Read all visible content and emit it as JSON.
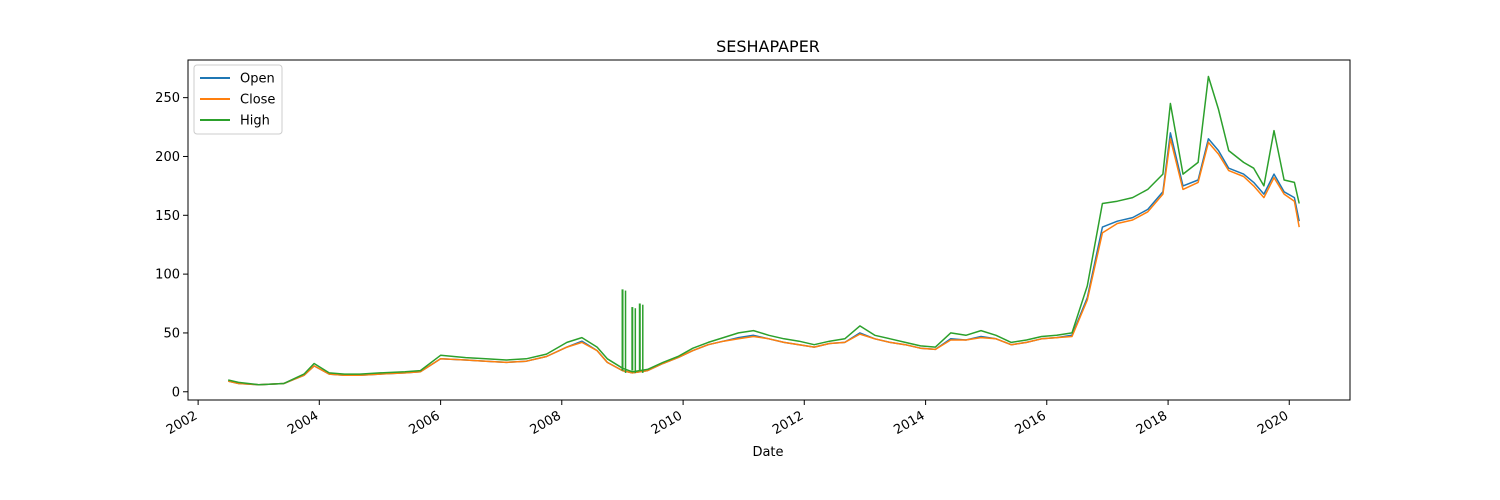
{
  "chart_data": {
    "type": "line",
    "title": "SESHAPAPER",
    "xlabel": "Date",
    "ylabel": "",
    "xlim": [
      "2001-11-01",
      "2021-01-01"
    ],
    "ylim": [
      -7,
      282
    ],
    "grid": false,
    "legend_position": "top-left",
    "x_ticks": [
      "2002",
      "2004",
      "2006",
      "2008",
      "2010",
      "2012",
      "2014",
      "2016",
      "2018",
      "2020"
    ],
    "y_ticks": [
      0,
      50,
      100,
      150,
      200,
      250
    ],
    "x": [
      "2002-07-01",
      "2002-09-01",
      "2003-01-01",
      "2003-06-01",
      "2003-10-01",
      "2003-12-01",
      "2004-03-01",
      "2004-06-01",
      "2004-09-01",
      "2005-01-01",
      "2005-06-01",
      "2005-09-01",
      "2006-01-01",
      "2006-06-01",
      "2006-10-01",
      "2007-02-01",
      "2007-06-01",
      "2007-10-01",
      "2008-02-01",
      "2008-05-01",
      "2008-08-01",
      "2008-10-01",
      "2009-01-01",
      "2009-03-01",
      "2009-06-01",
      "2009-09-01",
      "2009-12-01",
      "2010-03-01",
      "2010-06-01",
      "2010-09-01",
      "2010-12-01",
      "2011-03-01",
      "2011-06-01",
      "2011-09-01",
      "2011-12-01",
      "2012-03-01",
      "2012-06-01",
      "2012-09-01",
      "2012-12-01",
      "2013-03-01",
      "2013-06-01",
      "2013-09-01",
      "2013-12-01",
      "2014-03-01",
      "2014-06-01",
      "2014-09-01",
      "2014-12-01",
      "2015-03-01",
      "2015-06-01",
      "2015-09-01",
      "2015-12-01",
      "2016-03-01",
      "2016-06-01",
      "2016-09-01",
      "2016-12-01",
      "2017-03-01",
      "2017-06-01",
      "2017-09-01",
      "2017-12-01",
      "2018-01-15",
      "2018-04-01",
      "2018-07-01",
      "2018-09-01",
      "2018-11-01",
      "2019-01-01",
      "2019-04-01",
      "2019-06-01",
      "2019-08-01",
      "2019-10-01",
      "2019-12-01",
      "2020-02-01",
      "2020-03-01"
    ],
    "series": [
      {
        "name": "Open",
        "color": "#1f77b4",
        "values": [
          9,
          7,
          6,
          7,
          14,
          22,
          15,
          14,
          14,
          15,
          16,
          17,
          28,
          27,
          26,
          25,
          26,
          30,
          38,
          43,
          35,
          25,
          18,
          16,
          18,
          24,
          29,
          35,
          40,
          43,
          46,
          48,
          45,
          42,
          40,
          38,
          41,
          42,
          50,
          45,
          42,
          40,
          37,
          36,
          45,
          44,
          47,
          45,
          40,
          42,
          45,
          46,
          48,
          80,
          140,
          145,
          148,
          155,
          170,
          220,
          175,
          180,
          215,
          205,
          190,
          185,
          178,
          168,
          185,
          170,
          165,
          145
        ]
      },
      {
        "name": "Close",
        "color": "#ff7f0e",
        "values": [
          9,
          7,
          6,
          7,
          14,
          22,
          15,
          14,
          14,
          15,
          16,
          17,
          28,
          27,
          26,
          25,
          26,
          30,
          38,
          42,
          35,
          25,
          18,
          16,
          18,
          24,
          29,
          35,
          40,
          43,
          45,
          47,
          45,
          42,
          40,
          38,
          41,
          42,
          49,
          45,
          42,
          40,
          37,
          36,
          44,
          44,
          46,
          45,
          40,
          42,
          45,
          46,
          47,
          78,
          135,
          143,
          146,
          153,
          168,
          215,
          172,
          178,
          212,
          202,
          188,
          183,
          175,
          165,
          182,
          168,
          162,
          140
        ]
      },
      {
        "name": "High",
        "color": "#2ca02c",
        "values": [
          10,
          8,
          6,
          7,
          15,
          24,
          16,
          15,
          15,
          16,
          17,
          18,
          31,
          29,
          28,
          27,
          28,
          32,
          42,
          46,
          38,
          28,
          20,
          17,
          19,
          25,
          30,
          37,
          42,
          46,
          50,
          52,
          48,
          45,
          43,
          40,
          43,
          45,
          56,
          48,
          45,
          42,
          39,
          38,
          50,
          48,
          52,
          48,
          42,
          44,
          47,
          48,
          50,
          90,
          160,
          162,
          165,
          172,
          185,
          245,
          185,
          195,
          268,
          240,
          205,
          195,
          190,
          175,
          222,
          180,
          178,
          160
        ]
      }
    ],
    "spikes": [
      {
        "date": "2009-01-01",
        "values": [
          85,
          86,
          87
        ]
      },
      {
        "date": "2009-03-01",
        "values": [
          70,
          71,
          72
        ]
      },
      {
        "date": "2009-04-15",
        "values": [
          73,
          74,
          75
        ]
      }
    ]
  }
}
